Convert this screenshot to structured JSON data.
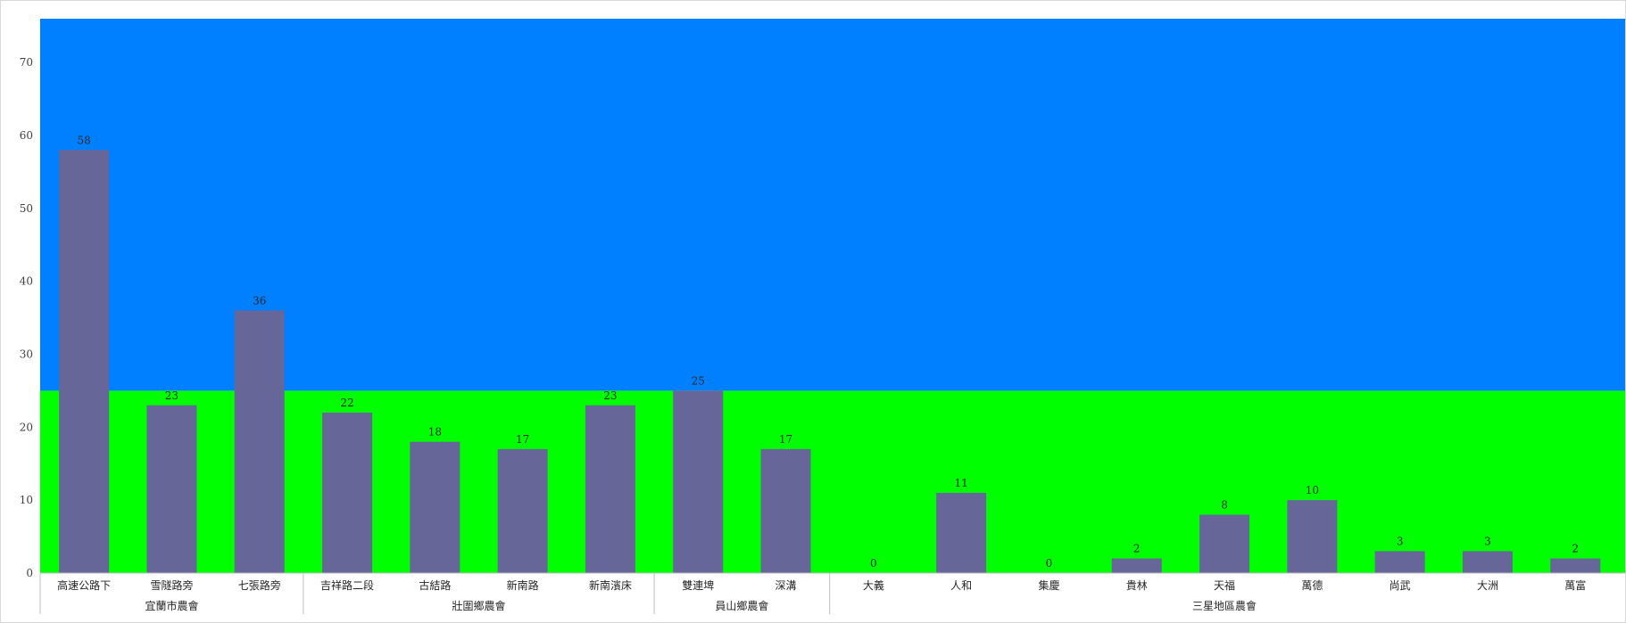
{
  "chart_data": {
    "type": "bar",
    "title": "",
    "xlabel": "",
    "ylabel": "",
    "ylim": [
      0,
      76
    ],
    "yticks": [
      0,
      10,
      20,
      30,
      40,
      50,
      60,
      70
    ],
    "grid": false,
    "legend": "none",
    "categories": [
      "高速公路下",
      "雪隧路旁",
      "七張路旁",
      "吉祥路二段",
      "古結路",
      "新南路",
      "新南濱床",
      "雙連埤",
      "深溝",
      "大義",
      "人和",
      "集慶",
      "貴林",
      "天福",
      "萬德",
      "尚武",
      "大洲",
      "萬富"
    ],
    "groups": [
      {
        "label": "宜蘭市農會",
        "count": 3
      },
      {
        "label": "壯圍鄉農會",
        "count": 4
      },
      {
        "label": "員山鄉農會",
        "count": 2
      },
      {
        "label": "三星地區農會",
        "count": 9
      }
    ],
    "series": [
      {
        "values": [
          58,
          23,
          36,
          22,
          18,
          17,
          23,
          25,
          17,
          0,
          11,
          0,
          2,
          8,
          10,
          3,
          3,
          2
        ]
      }
    ],
    "background_bands": [
      {
        "from": 0,
        "to": 25,
        "color": "#00ff00"
      },
      {
        "from": 25,
        "to": 76,
        "color": "#0080ff"
      }
    ],
    "colors": {
      "bar": "#666699",
      "axis": "#bfbfbf"
    }
  }
}
